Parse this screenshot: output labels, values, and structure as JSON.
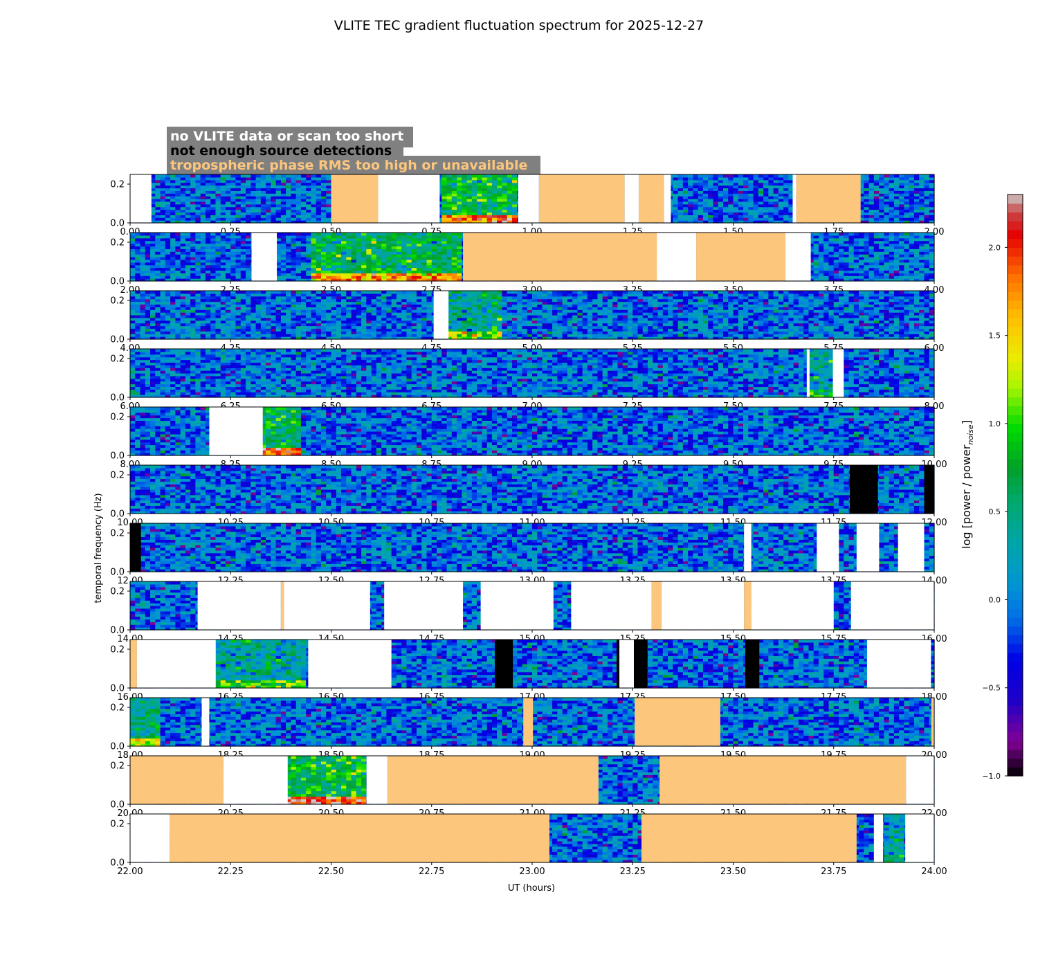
{
  "chart_data": {
    "type": "heatmap",
    "title": "VLITE TEC gradient fluctuation spectrum for 2025-12-27",
    "xlabel": "UT (hours)",
    "ylabel": "temporal frequency (Hz)",
    "colorbar_label": "log [power / power",
    "colorbar_label_sub": "noise",
    "colorbar_label_end": "]",
    "colorbar_range": [
      -1.0,
      2.3
    ],
    "colorbar_ticks": [
      -1.0,
      -0.5,
      0.0,
      0.5,
      1.0,
      1.5,
      2.0
    ],
    "ylim": [
      0,
      0.25
    ],
    "yticks": [
      0.0,
      0.2
    ],
    "colors": {
      "no_data": "#ffffff",
      "few_detections": "#000000",
      "tropo_bad": "#fdc67d",
      "legend_box": "#808080"
    },
    "legend": [
      {
        "label": "no VLITE data or scan too short",
        "text_color": "#ffffff"
      },
      {
        "label": "not enough source detections",
        "text_color": "#000000"
      },
      {
        "label": "tropospheric phase RMS too high or unavailable",
        "text_color": "#fdc67d"
      }
    ],
    "panels": [
      {
        "range": [
          0,
          2
        ],
        "xticks": [
          "0.00",
          "0.25",
          "0.50",
          "0.75",
          "1.00",
          "1.25",
          "1.50",
          "1.75",
          "2.00"
        ],
        "segments": [
          [
            "white",
            0.0,
            0.053
          ],
          [
            "tropo",
            0.5,
            0.617
          ],
          [
            "white",
            0.617,
            0.77
          ],
          [
            "white",
            0.965,
            1.017
          ],
          [
            "tropo",
            1.017,
            1.23
          ],
          [
            "white",
            1.23,
            1.265
          ],
          [
            "tropo",
            1.265,
            1.328
          ],
          [
            "white",
            1.328,
            1.345
          ],
          [
            "white",
            1.648,
            1.657
          ],
          [
            "tropo",
            1.657,
            1.817
          ]
        ],
        "hot": [
          [
            0.77,
            0.965,
            1.0
          ]
        ]
      },
      {
        "range": [
          2,
          4
        ],
        "xticks": [
          "2.00",
          "2.25",
          "2.50",
          "2.75",
          "3.00",
          "3.25",
          "3.50",
          "3.75",
          "4.00"
        ],
        "segments": [
          [
            "white",
            2.302,
            2.365
          ],
          [
            "tropo",
            2.828,
            3.31
          ],
          [
            "white",
            3.31,
            3.408
          ],
          [
            "tropo",
            3.408,
            3.63
          ],
          [
            "white",
            3.63,
            3.693
          ]
        ],
        "hot": [
          [
            2.45,
            2.828,
            0.9
          ]
        ]
      },
      {
        "range": [
          4,
          6
        ],
        "xticks": [
          "4.00",
          "4.25",
          "4.50",
          "4.75",
          "5.00",
          "5.25",
          "5.50",
          "5.75",
          "6.00"
        ],
        "segments": [
          [
            "white",
            4.755,
            4.792
          ]
        ],
        "hot": [
          [
            4.792,
            4.928,
            0.6
          ]
        ]
      },
      {
        "range": [
          6,
          8
        ],
        "xticks": [
          "6.00",
          "6.25",
          "6.50",
          "6.75",
          "7.00",
          "7.25",
          "7.50",
          "7.75",
          "8.00"
        ],
        "segments": [
          [
            "white",
            7.683,
            7.69
          ],
          [
            "white",
            7.748,
            7.775
          ]
        ],
        "hot": [
          [
            7.69,
            7.748,
            0.4
          ]
        ]
      },
      {
        "range": [
          8,
          10
        ],
        "xticks": [
          "8.00",
          "8.25",
          "8.50",
          "8.75",
          "9.00",
          "9.25",
          "9.50",
          "9.75",
          "10.00"
        ],
        "segments": [
          [
            "white",
            8.197,
            8.33
          ]
        ],
        "hot": [
          [
            8.33,
            8.428,
            1.0
          ]
        ]
      },
      {
        "range": [
          10,
          12
        ],
        "xticks": [
          "10.00",
          "10.25",
          "10.50",
          "10.75",
          "11.00",
          "11.25",
          "11.50",
          "11.75",
          "12.00"
        ],
        "segments": [
          [
            "black",
            11.79,
            11.86
          ],
          [
            "black",
            11.975,
            12.0
          ]
        ],
        "hot": []
      },
      {
        "range": [
          12,
          14
        ],
        "xticks": [
          "12.00",
          "12.25",
          "12.50",
          "12.75",
          "13.00",
          "13.25",
          "13.50",
          "13.75",
          "14.00"
        ],
        "segments": [
          [
            "black",
            12.0,
            12.027
          ],
          [
            "white",
            13.527,
            13.545
          ],
          [
            "white",
            13.708,
            13.763
          ],
          [
            "white",
            13.807,
            13.863
          ],
          [
            "white",
            13.91,
            13.975
          ]
        ],
        "hot": []
      },
      {
        "range": [
          14,
          16
        ],
        "xticks": [
          "14.00",
          "14.25",
          "14.50",
          "14.75",
          "15.00",
          "15.25",
          "15.50",
          "15.75",
          "16.00"
        ],
        "segments": [
          [
            "white",
            14.168,
            14.375
          ],
          [
            "tropo",
            14.375,
            14.383
          ],
          [
            "white",
            14.383,
            14.597
          ],
          [
            "white",
            14.632,
            14.828
          ],
          [
            "white",
            14.872,
            15.053
          ],
          [
            "white",
            15.097,
            15.297
          ],
          [
            "tropo",
            15.297,
            15.322
          ],
          [
            "white",
            15.322,
            15.527
          ],
          [
            "tropo",
            15.527,
            15.545
          ],
          [
            "white",
            15.545,
            15.75
          ],
          [
            "white",
            15.793,
            16.0
          ]
        ],
        "hot": []
      },
      {
        "range": [
          16,
          18
        ],
        "xticks": [
          "16.00",
          "16.25",
          "16.50",
          "16.75",
          "17.00",
          "17.25",
          "17.50",
          "17.75",
          "18.00"
        ],
        "segments": [
          [
            "tropo",
            16.0,
            16.017
          ],
          [
            "white",
            16.017,
            16.213
          ],
          [
            "white",
            16.443,
            16.65
          ],
          [
            "black",
            16.907,
            16.952
          ],
          [
            "black",
            17.21,
            17.217
          ],
          [
            "white",
            17.217,
            17.253
          ],
          [
            "black",
            17.253,
            17.287
          ],
          [
            "black",
            17.53,
            17.565
          ],
          [
            "white",
            17.833,
            17.992
          ]
        ],
        "hot": [
          [
            16.213,
            16.443,
            0.5
          ]
        ]
      },
      {
        "range": [
          18,
          20
        ],
        "xticks": [
          "18.00",
          "18.25",
          "18.50",
          "18.75",
          "19.00",
          "19.25",
          "19.50",
          "19.75",
          "20.00"
        ],
        "segments": [
          [
            "white",
            18.178,
            18.197
          ],
          [
            "tropo",
            18.978,
            19.002
          ],
          [
            "tropo",
            19.255,
            19.468
          ],
          [
            "tropo",
            19.993,
            20.0
          ]
        ],
        "hot": [
          [
            18.0,
            18.07,
            0.7
          ]
        ]
      },
      {
        "range": [
          20,
          22
        ],
        "xticks": [
          "20.00",
          "20.25",
          "20.50",
          "20.75",
          "21.00",
          "21.25",
          "21.50",
          "21.75",
          "22.00"
        ],
        "segments": [
          [
            "tropo",
            20.0,
            20.232
          ],
          [
            "white",
            20.232,
            20.392
          ],
          [
            "white",
            20.588,
            20.64
          ],
          [
            "tropo",
            20.64,
            21.165
          ],
          [
            "tropo",
            21.317,
            21.93
          ],
          [
            "white",
            21.93,
            22.0
          ]
        ],
        "hot": [
          [
            20.392,
            20.588,
            1.1
          ]
        ]
      },
      {
        "range": [
          22,
          24
        ],
        "xticks": [
          "22.00",
          "22.25",
          "22.50",
          "22.75",
          "23.00",
          "23.25",
          "23.50",
          "23.75",
          "24.00"
        ],
        "segments": [
          [
            "white",
            22.0,
            22.098
          ],
          [
            "tropo",
            22.098,
            23.043
          ],
          [
            "tropo",
            23.272,
            23.807
          ],
          [
            "white",
            23.85,
            23.873
          ],
          [
            "white",
            23.928,
            24.0
          ]
        ],
        "hot": [
          [
            23.873,
            23.928,
            0.4
          ]
        ]
      }
    ]
  }
}
